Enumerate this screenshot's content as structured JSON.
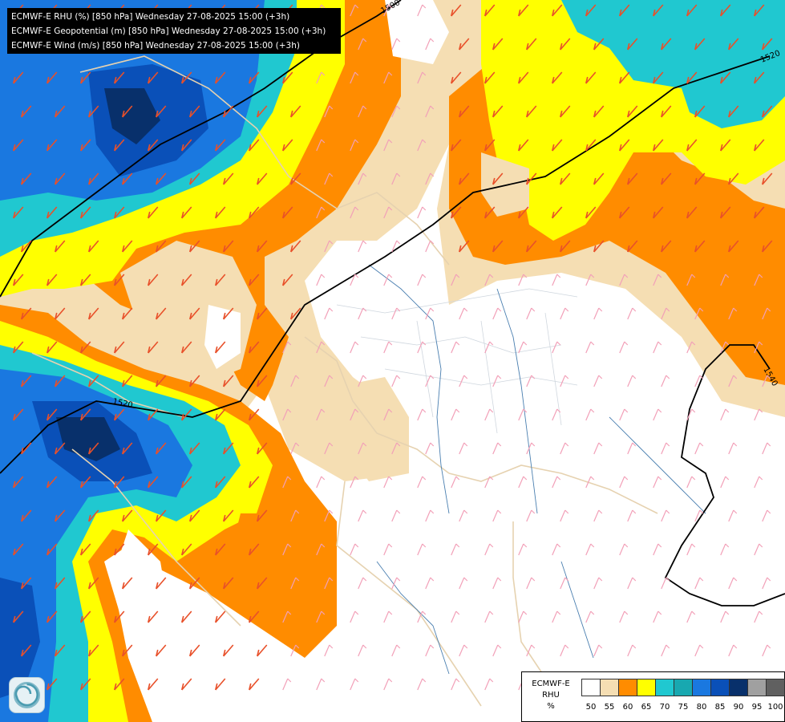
{
  "header": {
    "lines": [
      "ECMWF-E RHU (%) [850 hPa] Wednesday 27-08-2025 15:00 (+3h)",
      "ECMWF-E Geopotential (m) [850 hPa] Wednesday 27-08-2025 15:00 (+3h)",
      "ECMWF-E Wind (m/s) [850 hPa] Wednesday 27-08-2025 15:00 (+3h)"
    ]
  },
  "legend": {
    "title_line1": "ECMWF-E",
    "title_line2": "RHU",
    "unit": "%",
    "levels": [
      "50",
      "55",
      "60",
      "65",
      "70",
      "75",
      "80",
      "85",
      "90",
      "95",
      "100"
    ],
    "colors": [
      "#ffffff",
      "#f5deb3",
      "#ff8c00",
      "#ffff00",
      "#20c8d0",
      "#18a8b0",
      "#1a78e0",
      "#0a50b8",
      "#08306b",
      "#a0a0a0",
      "#606060"
    ]
  },
  "contours": {
    "labels": [
      "1500",
      "1520",
      "1520",
      "1540"
    ]
  },
  "logo": {
    "icon": "ecmwf-spiral-icon"
  }
}
